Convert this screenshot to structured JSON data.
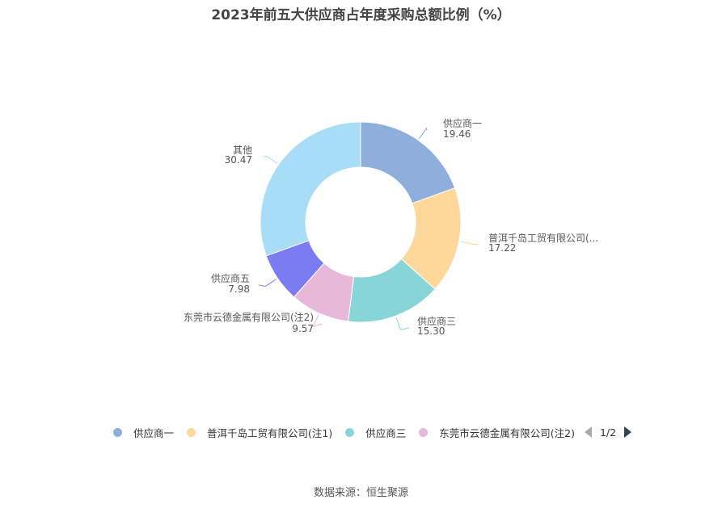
{
  "title": "2023年前五大供应商占年度采购总额比例（%）",
  "source": "数据来源：恒生聚源",
  "pager": {
    "text": "1/2"
  },
  "chart_data": {
    "type": "pie",
    "donut": true,
    "title": "2023年前五大供应商占年度采购总额比例（%）",
    "slices": [
      {
        "label": "供应商一",
        "value": 19.46,
        "color": "#8eaedc",
        "value_text": "19.46"
      },
      {
        "label": "普洱千岛工贸有限公司(...",
        "value": 17.22,
        "color": "#fdd89a",
        "value_text": "17.22"
      },
      {
        "label": "供应商三",
        "value": 15.3,
        "color": "#88d5d8",
        "value_text": "15.30"
      },
      {
        "label": "东莞市云德金属有限公司(注2)",
        "value": 9.57,
        "color": "#e8b8d9",
        "value_text": "9.57"
      },
      {
        "label": "供应商五",
        "value": 7.98,
        "color": "#7b7bf2",
        "value_text": "7.98"
      },
      {
        "label": "其他",
        "value": 30.47,
        "color": "#a8ddf7",
        "value_text": "30.47"
      }
    ],
    "legend": {
      "placement": "bottom",
      "items": [
        {
          "label": "供应商一",
          "color": "#8eaedc"
        },
        {
          "label": "普洱千岛工贸有限公司(注1)",
          "color": "#fdd89a"
        },
        {
          "label": "供应商三",
          "color": "#88d5d8"
        },
        {
          "label": "东莞市云德金属有限公司(注2)",
          "color": "#e8b8d9"
        }
      ]
    }
  }
}
